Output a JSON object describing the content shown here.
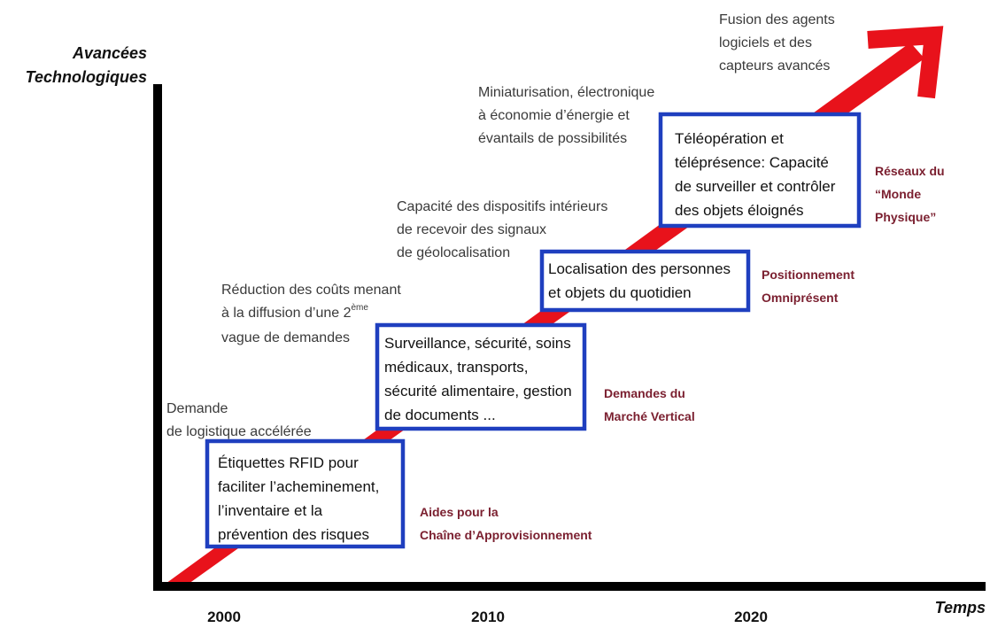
{
  "axes": {
    "y_title": [
      "Avancées",
      "Technologiques"
    ],
    "x_title": "Temps",
    "years": [
      "2000",
      "2010",
      "2020"
    ]
  },
  "notes": [
    [
      "Demande",
      "de logistique accélérée"
    ],
    [
      "Réduction des coûts menant",
      "à la diffusion d’une 2",
      "vague de demandes"
    ],
    [
      "Capacité des dispositifs intérieurs",
      "de recevoir des signaux",
      "de géolocalisation"
    ],
    [
      "Miniaturisation, électronique",
      "à économie d’énergie et",
      "évantails de possibilités"
    ],
    [
      "Fusion des agents",
      "logiciels et des",
      "capteurs avancés"
    ]
  ],
  "notes_superscript": "ème",
  "boxes": [
    [
      "Étiquettes RFID pour",
      "faciliter l’acheminement,",
      "l’inventaire et la",
      "prévention des risques"
    ],
    [
      "Surveillance, sécurité, soins",
      "médicaux, transports,",
      "sécurité alimentaire, gestion",
      "de documents ..."
    ],
    [
      "Localisation des personnes",
      "et objets du quotidien"
    ],
    [
      "Téléopération et",
      "téléprésence: Capacité",
      "de surveiller et contrôler",
      "des objets éloignés"
    ]
  ],
  "phases": [
    [
      "Aides pour la",
      "Chaîne d’Approvisionnement"
    ],
    [
      "Demandes du",
      "Marché Vertical"
    ],
    [
      "Positionnement",
      "Omniprésent"
    ],
    [
      "Réseaux du",
      "“Monde",
      "Physique”"
    ]
  ]
}
